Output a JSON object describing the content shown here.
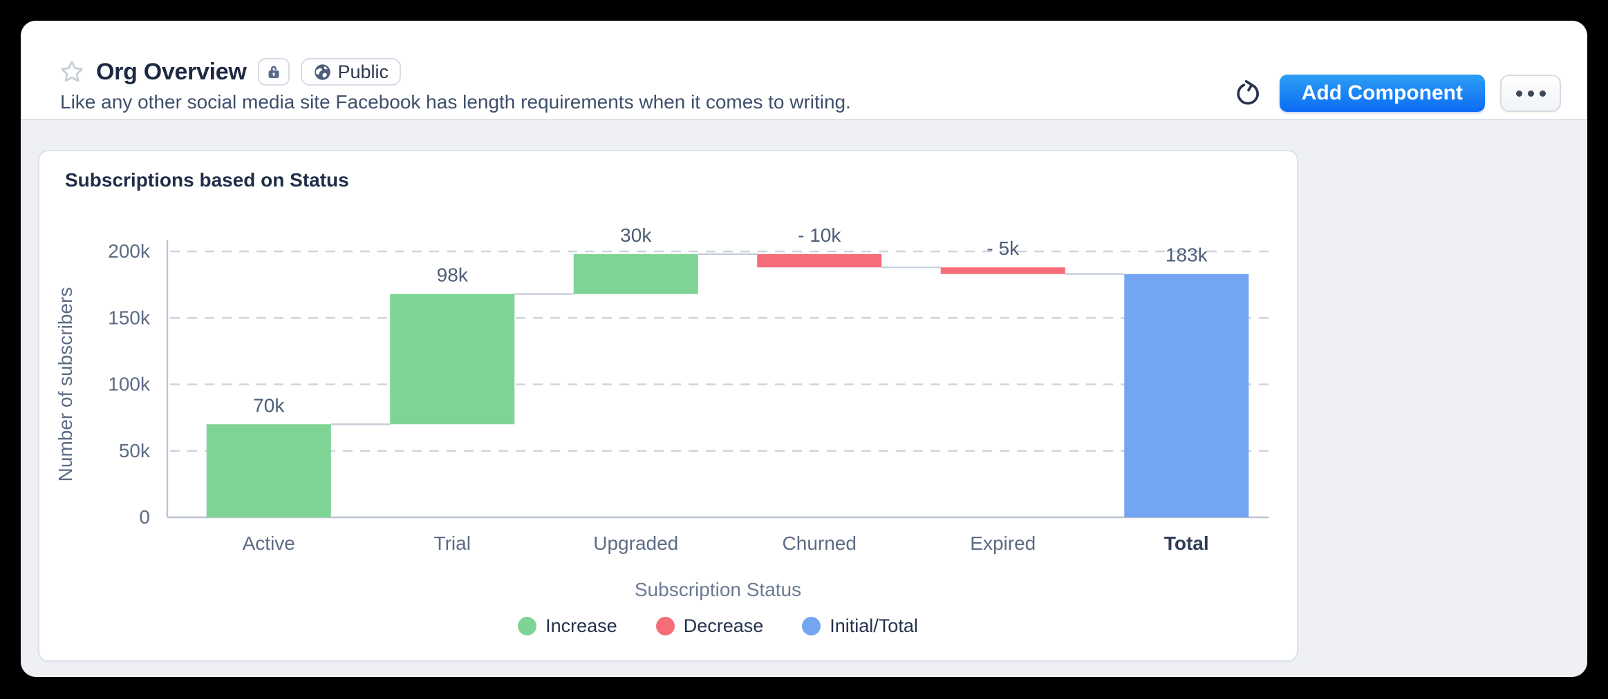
{
  "header": {
    "title": "Org Overview",
    "description": "Like any other social media site Facebook has length requirements when it comes to writing.",
    "visibility_badge": "Public",
    "lock_icon": "lock-icon",
    "refresh_icon": "refresh-icon",
    "add_component_label": "Add Component",
    "more_icon": "ellipsis-icon"
  },
  "chart_data": {
    "type": "bar",
    "subtype": "waterfall",
    "title": "Subscriptions based on Status",
    "categories": [
      "Active",
      "Trial",
      "Upgraded",
      "Churned",
      "Expired",
      "Total"
    ],
    "values": [
      70000,
      98000,
      30000,
      -10000,
      -5000,
      183000
    ],
    "bar_kinds": [
      "increase",
      "increase",
      "increase",
      "decrease",
      "decrease",
      "total"
    ],
    "bar_labels": [
      "70k",
      "98k",
      "30k",
      "- 10k",
      "- 5k",
      "183k"
    ],
    "cumulative": [
      70000,
      168000,
      198000,
      188000,
      183000,
      183000
    ],
    "xlabel": "Subscription Status",
    "ylabel": "Number of subscribers",
    "ylim": [
      0,
      200000
    ],
    "yticks": [
      {
        "value": 0,
        "label": "0"
      },
      {
        "value": 50000,
        "label": "50k"
      },
      {
        "value": 100000,
        "label": "100k"
      },
      {
        "value": 150000,
        "label": "150k"
      },
      {
        "value": 200000,
        "label": "200k"
      }
    ],
    "grid": "dashed-horizontal",
    "legend": {
      "position": "bottom",
      "entries": [
        {
          "label": "Increase",
          "color": "#7ed494"
        },
        {
          "label": "Decrease",
          "color": "#f56d77"
        },
        {
          "label": "Initial/Total",
          "color": "#73a5f3"
        }
      ]
    },
    "colors": {
      "increase": "#7ed494",
      "decrease": "#f56d77",
      "total": "#73a5f3"
    }
  }
}
